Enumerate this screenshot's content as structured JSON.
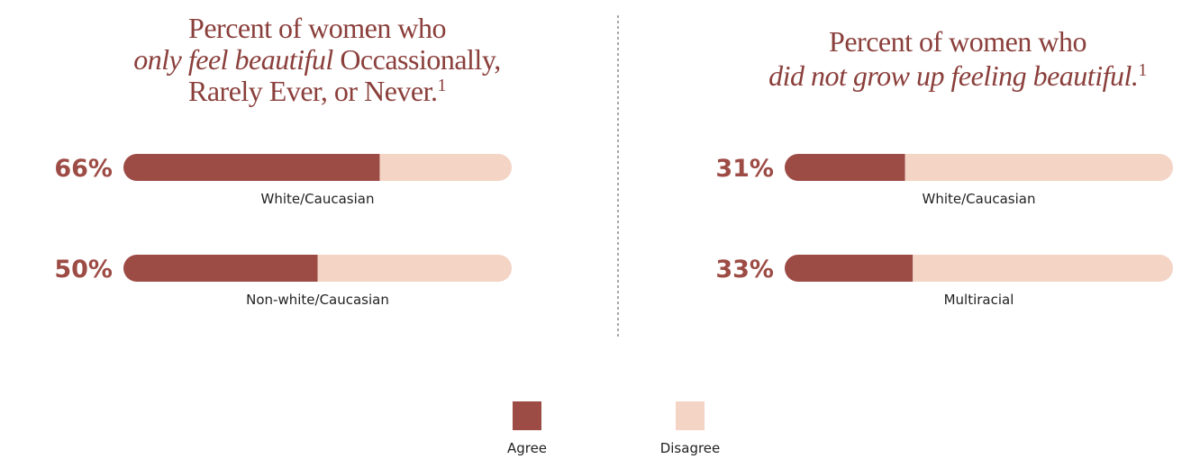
{
  "chart_data": [
    {
      "type": "bar",
      "title": {
        "lines": [
          [
            {
              "text": "Percent of women who"
            }
          ],
          [
            {
              "text": "only feel beautiful",
              "italic": true
            },
            {
              "text": " Occassionally,"
            }
          ],
          [
            {
              "text": "Rarely Ever, or Never."
            }
          ]
        ],
        "footnote": "1"
      },
      "categories": [
        "White/Caucasian",
        "Non-white/Caucasian"
      ],
      "xlim": [
        0,
        100
      ],
      "series": [
        {
          "values": [
            66,
            50
          ],
          "value_labels": [
            "66%",
            "50%"
          ]
        },
        {
          "values": [
            34,
            50
          ]
        }
      ]
    },
    {
      "type": "bar",
      "title": {
        "lines": [
          [
            {
              "text": "Percent of women who"
            }
          ],
          [
            {
              "text": "did not grow up feeling beautiful.",
              "italic": true
            }
          ]
        ],
        "footnote": "1"
      },
      "categories": [
        "White/Caucasian",
        "Multiracial"
      ],
      "xlim": [
        0,
        100
      ],
      "series": [
        {
          "values": [
            31,
            33
          ],
          "value_labels": [
            "31%",
            "33%"
          ]
        },
        {
          "values": [
            69,
            67
          ]
        }
      ]
    }
  ],
  "legend": [
    {
      "name": "Agree",
      "color": "#9d4b45"
    },
    {
      "name": "Disagree",
      "color": "#f3d4c5"
    }
  ]
}
